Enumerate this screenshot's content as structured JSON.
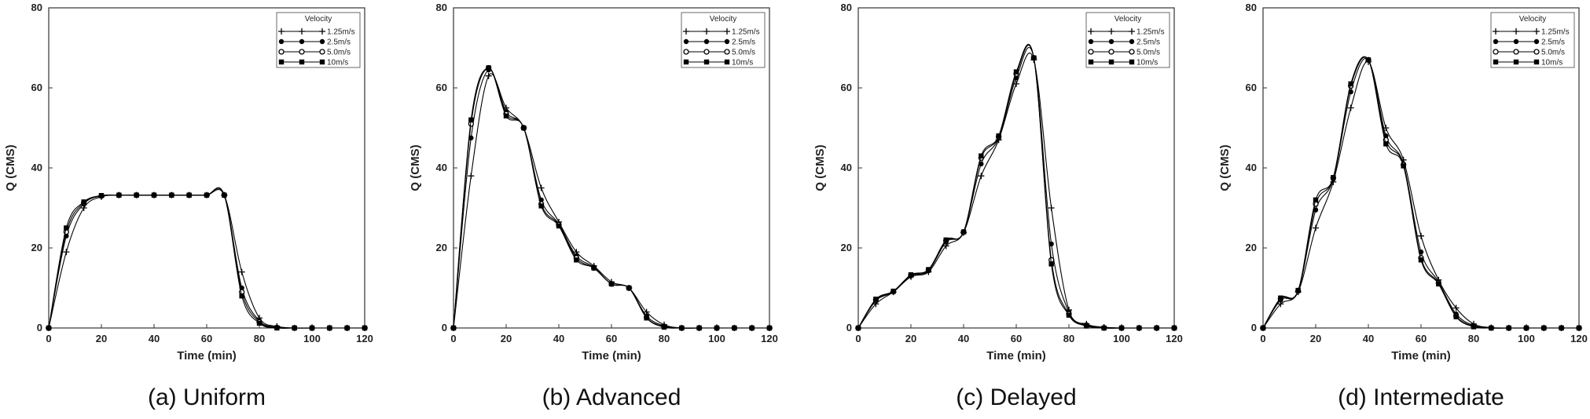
{
  "chart_data": [
    {
      "type": "line",
      "caption": "(a) Uniform",
      "xlabel": "Time (min)",
      "ylabel": "Q (CMS)",
      "xlim": [
        0,
        120
      ],
      "ylim": [
        0,
        80
      ],
      "xticks": [
        0,
        20,
        40,
        60,
        80,
        100,
        120
      ],
      "yticks": [
        0,
        20,
        40,
        60,
        80
      ],
      "grid": false,
      "legend": {
        "title": "Velocity",
        "position": "top-right"
      },
      "x": [
        0,
        6.67,
        13.33,
        20,
        26.67,
        33.33,
        40,
        46.67,
        53.33,
        60,
        66.67,
        73.33,
        80,
        86.67,
        93.33,
        100,
        106.67,
        113.33,
        120
      ],
      "series": [
        {
          "name": "1.25m/s",
          "marker": "plus",
          "values": [
            0,
            19,
            30,
            32.8,
            33.2,
            33.2,
            33.2,
            33.2,
            33.2,
            33.2,
            33.2,
            14,
            2.5,
            0.4,
            0,
            0,
            0,
            0,
            0
          ]
        },
        {
          "name": "2.5m/s",
          "marker": "circle",
          "values": [
            0,
            23,
            31,
            33,
            33.2,
            33.2,
            33.2,
            33.2,
            33.2,
            33.2,
            33.2,
            10,
            1.8,
            0.2,
            0,
            0,
            0,
            0,
            0
          ]
        },
        {
          "name": "5.0m/s",
          "marker": "circle-open",
          "values": [
            0,
            24,
            31.3,
            33,
            33.2,
            33.2,
            33.2,
            33.2,
            33.2,
            33.2,
            33.2,
            9,
            1.5,
            0.1,
            0,
            0,
            0,
            0,
            0
          ]
        },
        {
          "name": "10m/s",
          "marker": "square",
          "values": [
            0,
            25,
            31.5,
            33.1,
            33.2,
            33.2,
            33.2,
            33.2,
            33.2,
            33.2,
            33.2,
            8,
            1.2,
            0,
            0,
            0,
            0,
            0,
            0
          ]
        }
      ]
    },
    {
      "type": "line",
      "caption": "(b) Advanced",
      "xlabel": "Time (min)",
      "ylabel": "Q (CMS)",
      "xlim": [
        0,
        120
      ],
      "ylim": [
        0,
        80
      ],
      "xticks": [
        0,
        20,
        40,
        60,
        80,
        100,
        120
      ],
      "yticks": [
        0,
        20,
        40,
        60,
        80
      ],
      "grid": false,
      "legend": {
        "title": "Velocity",
        "position": "top-right"
      },
      "x": [
        0,
        6.67,
        13.33,
        20,
        26.67,
        33.33,
        40,
        46.67,
        53.33,
        60,
        66.67,
        73.33,
        80,
        86.67,
        93.33,
        100,
        106.67,
        113.33,
        120
      ],
      "series": [
        {
          "name": "1.25m/s",
          "marker": "plus",
          "values": [
            0,
            38,
            63,
            55,
            50,
            35,
            26.5,
            19,
            15.5,
            11.5,
            10,
            4,
            0.8,
            0,
            0,
            0,
            0,
            0,
            0
          ]
        },
        {
          "name": "2.5m/s",
          "marker": "circle",
          "values": [
            0,
            47.5,
            64.5,
            54,
            50,
            32,
            26,
            18,
            15.2,
            11,
            10,
            3,
            0.5,
            0,
            0,
            0,
            0,
            0,
            0
          ]
        },
        {
          "name": "5.0m/s",
          "marker": "circle-open",
          "values": [
            0,
            51,
            65,
            53.5,
            50,
            31,
            25.8,
            17.5,
            15,
            11,
            10,
            2.6,
            0.3,
            0,
            0,
            0,
            0,
            0,
            0
          ]
        },
        {
          "name": "10m/s",
          "marker": "square",
          "values": [
            0,
            52,
            65,
            53,
            50,
            30.5,
            25.5,
            17,
            15,
            11,
            10,
            2.5,
            0.2,
            0,
            0,
            0,
            0,
            0,
            0
          ]
        }
      ]
    },
    {
      "type": "line",
      "caption": "(c) Delayed",
      "xlabel": "Time (min)",
      "ylabel": "Q (CMS)",
      "xlim": [
        0,
        120
      ],
      "ylim": [
        0,
        80
      ],
      "xticks": [
        0,
        20,
        40,
        60,
        80,
        100,
        120
      ],
      "yticks": [
        0,
        20,
        40,
        60,
        80
      ],
      "grid": false,
      "legend": {
        "title": "Velocity",
        "position": "top-right"
      },
      "x": [
        0,
        6.67,
        13.33,
        20,
        26.67,
        33.33,
        40,
        46.67,
        53.33,
        60,
        66.67,
        73.33,
        80,
        86.67,
        93.33,
        100,
        106.67,
        113.33,
        120
      ],
      "series": [
        {
          "name": "1.25m/s",
          "marker": "plus",
          "values": [
            0,
            6,
            9,
            12.8,
            14,
            20.5,
            23.8,
            38,
            47,
            61,
            67,
            30,
            4.5,
            1,
            0.2,
            0,
            0,
            0,
            0
          ]
        },
        {
          "name": "2.5m/s",
          "marker": "circle",
          "values": [
            0,
            6.8,
            9,
            13,
            14.3,
            21.5,
            24,
            41,
            47.5,
            62.5,
            67.5,
            21,
            4,
            0.8,
            0,
            0,
            0,
            0,
            0
          ]
        },
        {
          "name": "5.0m/s",
          "marker": "circle-open",
          "values": [
            0,
            7,
            9.1,
            13.2,
            14.5,
            21.8,
            24,
            42.5,
            47.8,
            63.5,
            67.5,
            17,
            3.5,
            0.6,
            0,
            0,
            0,
            0,
            0
          ]
        },
        {
          "name": "10m/s",
          "marker": "square",
          "values": [
            0,
            7.2,
            9.2,
            13.3,
            14.6,
            22,
            24,
            43,
            48,
            64,
            67.5,
            16,
            3.2,
            0.5,
            0,
            0,
            0,
            0,
            0
          ]
        }
      ]
    },
    {
      "type": "line",
      "caption": "(d) Intermediate",
      "xlabel": "Time (min)",
      "ylabel": "Q (CMS)",
      "xlim": [
        0,
        120
      ],
      "ylim": [
        0,
        80
      ],
      "xticks": [
        0,
        20,
        40,
        60,
        80,
        100,
        120
      ],
      "yticks": [
        0,
        20,
        40,
        60,
        80
      ],
      "grid": false,
      "legend": {
        "title": "Velocity",
        "position": "top-right"
      },
      "x": [
        0,
        6.67,
        13.33,
        20,
        26.67,
        33.33,
        40,
        46.67,
        53.33,
        60,
        66.67,
        73.33,
        80,
        86.67,
        93.33,
        100,
        106.67,
        113.33,
        120
      ],
      "series": [
        {
          "name": "1.25m/s",
          "marker": "plus",
          "values": [
            0,
            6,
            9,
            25,
            36.5,
            55,
            66.5,
            50,
            42,
            23,
            12,
            5,
            1,
            0.1,
            0,
            0,
            0,
            0,
            0
          ]
        },
        {
          "name": "2.5m/s",
          "marker": "circle",
          "values": [
            0,
            7,
            9.2,
            29.5,
            37.2,
            59,
            67,
            48,
            41,
            19,
            11.5,
            3.5,
            0.6,
            0,
            0,
            0,
            0,
            0,
            0
          ]
        },
        {
          "name": "5.0m/s",
          "marker": "circle-open",
          "values": [
            0,
            7.3,
            9.3,
            31,
            37.5,
            60.5,
            67,
            47,
            40.8,
            17.5,
            11.2,
            3,
            0.4,
            0,
            0,
            0,
            0,
            0,
            0
          ]
        },
        {
          "name": "10m/s",
          "marker": "square",
          "values": [
            0,
            7.5,
            9.4,
            32,
            37.6,
            61,
            67,
            46,
            40.5,
            17,
            11,
            2.8,
            0.3,
            0,
            0,
            0,
            0,
            0,
            0
          ]
        }
      ]
    }
  ]
}
